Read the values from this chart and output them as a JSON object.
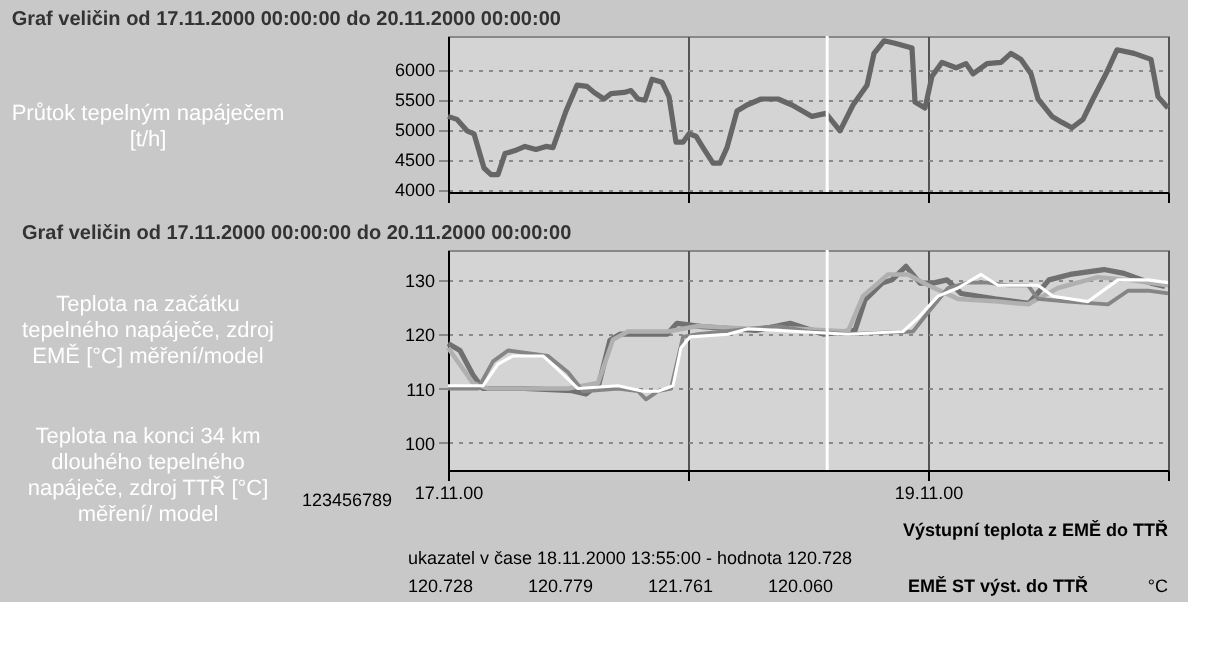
{
  "chart_data": [
    {
      "type": "line",
      "title": "Graf veličin od 17.11.2000 00:00:00 do 20.11.2000 00:00:00",
      "ylabel": "Průtok tepelným napáječem [t/h]",
      "x": [
        "2000-11-17T00:00",
        "2000-11-17T00:54",
        "2000-11-17T01:54",
        "2000-11-17T02:36",
        "2000-11-17T03:36",
        "2000-11-17T04:18",
        "2000-11-17T05:00",
        "2000-11-17T05:42",
        "2000-11-17T06:42",
        "2000-11-17T07:42",
        "2000-11-17T08:48",
        "2000-11-17T09:48",
        "2000-11-17T10:30",
        "2000-11-17T11:06",
        "2000-11-17T11:48",
        "2000-11-17T12:54",
        "2000-11-17T13:54",
        "2000-11-17T14:36",
        "2000-11-17T15:36",
        "2000-11-17T16:18",
        "2000-11-17T17:36",
        "2000-11-17T18:18",
        "2000-11-17T19:00",
        "2000-11-17T19:42",
        "2000-11-17T20:24",
        "2000-11-17T21:24",
        "2000-11-17T22:06",
        "2000-11-17T22:48",
        "2000-11-17T23:30",
        "2000-11-18T00:06",
        "2000-11-18T00:48",
        "2000-11-18T01:30",
        "2000-11-18T02:30",
        "2000-11-18T03:12",
        "2000-11-18T03:54",
        "2000-11-18T04:54",
        "2000-11-18T05:54",
        "2000-11-18T07:18",
        "2000-11-18T09:00",
        "2000-11-18T10:24",
        "2000-11-18T12:24",
        "2000-11-18T13:48",
        "2000-11-18T15:12",
        "2000-11-18T16:30",
        "2000-11-18T17:54",
        "2000-11-18T18:36",
        "2000-11-18T19:36",
        "2000-11-18T20:42",
        "2000-11-18T22:24",
        "2000-11-18T22:42",
        "2000-11-18T23:42",
        "2000-11-19T00:24",
        "2000-11-19T01:24",
        "2000-11-19T02:48",
        "2000-11-19T03:48",
        "2000-11-19T04:30",
        "2000-11-19T05:54",
        "2000-11-19T07:18",
        "2000-11-19T08:18",
        "2000-11-19T09:18",
        "2000-11-19T10:18",
        "2000-11-19T11:00",
        "2000-11-19T12:24",
        "2000-11-19T13:24",
        "2000-11-19T14:24",
        "2000-11-19T15:30",
        "2000-11-19T16:30",
        "2000-11-19T17:48",
        "2000-11-19T18:54",
        "2000-11-19T20:36",
        "2000-11-19T22:18",
        "2000-11-19T23:00",
        "2000-11-20T00:00"
      ],
      "series": [
        {
          "color": "#666666",
          "values": [
            5210,
            5160,
            4970,
            4920,
            4350,
            4240,
            4240,
            4590,
            4640,
            4710,
            4660,
            4710,
            4690,
            4970,
            5300,
            5730,
            5710,
            5610,
            5500,
            5590,
            5610,
            5640,
            5500,
            5480,
            5830,
            5780,
            5540,
            4780,
            4780,
            4920,
            4880,
            4690,
            4430,
            4430,
            4690,
            5300,
            5400,
            5500,
            5500,
            5400,
            5210,
            5260,
            4970,
            5400,
            5730,
            6260,
            6470,
            6430,
            6350,
            5450,
            5350,
            5880,
            6110,
            6020,
            6090,
            5920,
            6090,
            6110,
            6260,
            6160,
            5920,
            5500,
            5210,
            5110,
            5020,
            5160,
            5500,
            5920,
            6320,
            6260,
            6160,
            5540,
            5350
          ]
        }
      ],
      "xlim": [
        "2000-11-17T00:00",
        "2000-11-20T00:00"
      ],
      "xticks": [
        {
          "value": "2000-11-17T00:00",
          "label": null
        },
        {
          "value": "2000-11-18T00:00",
          "label": null
        },
        {
          "value": "2000-11-19T00:00",
          "label": null
        },
        {
          "value": "2000-11-20T00:00",
          "label": null
        }
      ],
      "ylim": [
        3950,
        6550
      ],
      "yticks": [
        4000,
        4500,
        5000,
        5500,
        6000
      ],
      "tick_labels": "y",
      "grid": true,
      "line_style": "solid",
      "marker": "none",
      "ref_lines": [
        {
          "axis": "x",
          "value": "2000-11-18T13:55",
          "color": "#ffffff"
        }
      ]
    },
    {
      "type": "line",
      "title": "Graf veličin od 17.11.2000 00:00:00 do 20.11.2000 00:00:00",
      "series": [
        {
          "color": "#707070",
          "x": [
            "2000-11-17T00:00",
            "2000-11-17T01:12",
            "2000-11-17T02:30",
            "2000-11-17T03:30",
            "2000-11-17T07:36",
            "2000-11-17T12:24",
            "2000-11-17T13:48",
            "2000-11-17T15:06",
            "2000-11-17T16:12",
            "2000-11-17T17:12",
            "2000-11-17T21:54",
            "2000-11-17T22:54",
            "2000-11-18T01:24",
            "2000-11-18T06:48",
            "2000-11-18T10:12",
            "2000-11-18T13:36",
            "2000-11-18T16:42",
            "2000-11-18T17:42",
            "2000-11-18T19:24",
            "2000-11-18T20:24",
            "2000-11-18T21:48",
            "2000-11-18T23:12",
            "2000-11-19T00:30",
            "2000-11-19T01:54",
            "2000-11-19T03:18",
            "2000-11-19T06:42",
            "2000-11-19T10:06",
            "2000-11-19T12:06",
            "2000-11-19T14:12",
            "2000-11-19T17:36",
            "2000-11-19T19:36",
            "2000-11-19T22:18",
            "2000-11-19T23:42"
          ],
          "values": [
            118.3,
            117.0,
            112.5,
            110,
            110,
            109.6,
            109,
            110.9,
            118.9,
            120,
            120,
            122,
            121.4,
            120.7,
            122,
            120,
            120.7,
            126.3,
            129.4,
            130,
            132.5,
            129.4,
            129.4,
            130,
            127.5,
            126.5,
            125.7,
            130,
            131,
            131.9,
            131.2,
            129.4,
            128.8
          ]
        },
        {
          "color": "#b0b0b0",
          "x": [
            "2000-11-17T00:00",
            "2000-11-17T02:30",
            "2000-11-17T04:00",
            "2000-11-17T12:00",
            "2000-11-17T15:00",
            "2000-11-17T16:30",
            "2000-11-17T18:00",
            "2000-11-17T22:00",
            "2000-11-18T01:00",
            "2000-11-18T06:00",
            "2000-11-18T11:00",
            "2000-11-18T16:00",
            "2000-11-18T17:30",
            "2000-11-18T20:00",
            "2000-11-18T22:00",
            "2000-11-19T00:00",
            "2000-11-19T03:00",
            "2000-11-19T07:00",
            "2000-11-19T10:00",
            "2000-11-19T13:00",
            "2000-11-19T17:00",
            "2000-11-19T20:00",
            "2000-11-20T00:00"
          ],
          "values": [
            117.5,
            111,
            110,
            110,
            111,
            119,
            120.5,
            120.5,
            121.5,
            121,
            121,
            120.5,
            127,
            131,
            131,
            129,
            126.5,
            126,
            125.5,
            128.5,
            130.5,
            130,
            129
          ]
        },
        {
          "color": "#858585",
          "x": [
            "2000-11-17T00:00",
            "2000-11-17T03:00",
            "2000-11-17T04:30",
            "2000-11-17T06:00",
            "2000-11-17T08:00",
            "2000-11-17T10:00",
            "2000-11-17T12:00",
            "2000-11-17T13:30",
            "2000-11-17T17:00",
            "2000-11-17T19:00",
            "2000-11-17T19:48",
            "2000-11-17T21:00",
            "2000-11-17T22:18",
            "2000-11-17T23:30",
            "2000-11-18T01:00",
            "2000-11-18T06:00",
            "2000-11-18T09:00",
            "2000-11-18T12:00",
            "2000-11-18T16:00",
            "2000-11-18T22:30",
            "2000-11-19T00:00",
            "2000-11-19T02:00",
            "2000-11-19T04:00",
            "2000-11-19T06:00",
            "2000-11-19T08:00",
            "2000-11-19T10:00",
            "2000-11-19T11:00",
            "2000-11-19T14:00",
            "2000-11-19T18:00",
            "2000-11-19T20:00",
            "2000-11-19T22:00",
            "2000-11-20T00:00"
          ],
          "values": [
            110,
            110,
            115,
            117,
            116.5,
            116,
            113,
            109.5,
            110,
            109.5,
            108,
            109.5,
            110,
            119.5,
            120,
            121,
            121.5,
            120.5,
            120,
            120.5,
            124,
            128.5,
            129.5,
            129.5,
            129,
            129,
            126.5,
            126,
            125.5,
            128,
            128,
            127.5
          ]
        },
        {
          "color": "#ffffff",
          "x": [
            "2000-11-17T00:00",
            "2000-11-17T03:30",
            "2000-11-17T05:00",
            "2000-11-17T06:30",
            "2000-11-17T09:30",
            "2000-11-17T11:00",
            "2000-11-17T13:00",
            "2000-11-17T17:00",
            "2000-11-17T19:30",
            "2000-11-17T21:00",
            "2000-11-17T22:30",
            "2000-11-17T23:18",
            "2000-11-18T00:12",
            "2000-11-18T04:00",
            "2000-11-18T06:00",
            "2000-11-18T11:00",
            "2000-11-18T16:00",
            "2000-11-18T21:30",
            "2000-11-18T23:00",
            "2000-11-19T01:00",
            "2000-11-19T03:00",
            "2000-11-19T05:18",
            "2000-11-19T07:00",
            "2000-11-19T11:00",
            "2000-11-19T12:30",
            "2000-11-19T16:00",
            "2000-11-19T19:00",
            "2000-11-19T22:00",
            "2000-11-20T00:00"
          ],
          "values": [
            110.5,
            110.5,
            114.5,
            116,
            116,
            113.5,
            110,
            110.5,
            109.5,
            109.5,
            110.5,
            117.5,
            119.5,
            120,
            121,
            120.5,
            120,
            120.5,
            123,
            127,
            128.5,
            131,
            129,
            129,
            127,
            126,
            130,
            130,
            129.5
          ]
        }
      ],
      "xlim": [
        "2000-11-17T00:00",
        "2000-11-20T00:00"
      ],
      "xticks": [
        {
          "value": "2000-11-17T00:00",
          "label": "17.11.00"
        },
        {
          "value": "2000-11-18T00:00",
          "label": null
        },
        {
          "value": "2000-11-19T00:00",
          "label": "19.11.00"
        },
        {
          "value": "2000-11-20T00:00",
          "label": null
        }
      ],
      "ylim": [
        95,
        135.5
      ],
      "yticks": [
        100,
        110,
        120,
        130
      ],
      "grid": true,
      "line_style": "solid",
      "marker": "none",
      "ref_lines": [
        {
          "axis": "x",
          "value": "2000-11-18T13:55",
          "color": "#ffffff"
        }
      ],
      "annotations": [
        "Teplota na začátku tepelného napáječe, zdroj EMĚ [°C] měření/model",
        "Teplota na konci 34 km dlouhého tepelného napáječe, zdroj TTŘ [°C] měření/ model",
        "123456789",
        "Výstupní teplota z EMĚ do TTŘ",
        "ukazatel v čase 18.11.2000 13:55:00 - hodnota 120.728",
        "120.728",
        "120.779",
        "121.761",
        "120.060",
        "EMĚ ST výst. do TTŘ",
        "°C"
      ]
    }
  ]
}
